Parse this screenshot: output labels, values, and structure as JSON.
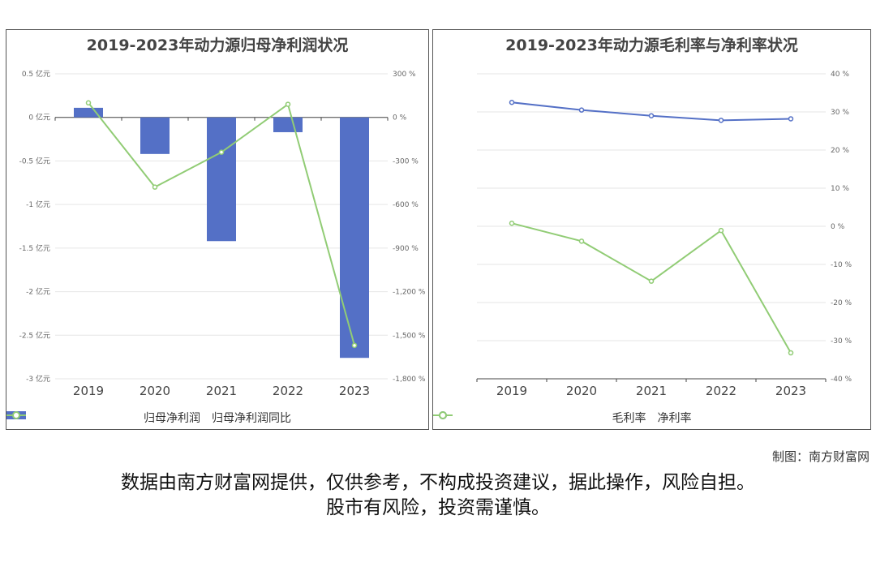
{
  "chart_data": [
    {
      "type": "bar",
      "title": "2019-2023年动力源归母净利润状况",
      "categories": [
        "2019",
        "2020",
        "2021",
        "2022",
        "2023"
      ],
      "y_left": {
        "ticks": [
          "0.5 亿元",
          "0 亿元",
          "-0.5 亿元",
          "-1 亿元",
          "-1.5 亿元",
          "-2 亿元",
          "-2.5 亿元",
          "-3 亿元"
        ],
        "range": [
          -3,
          0.5
        ]
      },
      "y_right": {
        "ticks": [
          "300 %",
          "0 %",
          "-300 %",
          "-600 %",
          "-900 %",
          "-1,200 %",
          "-1,500 %",
          "-1,800 %"
        ],
        "range": [
          -1800,
          300
        ]
      },
      "series": [
        {
          "name": "归母净利润",
          "kind": "bar",
          "axis": "left",
          "color": "#5470c6",
          "values": [
            0.11,
            -0.42,
            -1.42,
            -0.17,
            -2.76
          ]
        },
        {
          "name": "归母净利润同比",
          "kind": "line",
          "axis": "right",
          "color": "#91cc75",
          "values": [
            100,
            -480,
            -240,
            90,
            -1570
          ]
        }
      ],
      "legend": "bottom"
    },
    {
      "type": "line",
      "title": "2019-2023年动力源毛利率与净利率状况",
      "categories": [
        "2019",
        "2020",
        "2021",
        "2022",
        "2023"
      ],
      "y_right": {
        "ticks": [
          "40 %",
          "30 %",
          "20 %",
          "10 %",
          "0 %",
          "-10 %",
          "-20 %",
          "-30 %",
          "-40 %"
        ],
        "range": [
          -40,
          40
        ]
      },
      "series": [
        {
          "name": "毛利率",
          "kind": "line",
          "color": "#5470c6",
          "values": [
            32.5,
            30.5,
            29.0,
            27.8,
            28.2
          ]
        },
        {
          "name": "净利率",
          "kind": "line",
          "color": "#91cc75",
          "values": [
            0.8,
            -3.9,
            -14.4,
            -1.1,
            -33.2
          ]
        }
      ],
      "legend": "bottom"
    }
  ],
  "footer": {
    "credit": "制图：南方财富网",
    "disclaimer_line1": "数据由南方财富网提供，仅供参考，不构成投资建议，据此操作，风险自担。",
    "disclaimer_line2": "股市有风险，投资需谨慎。"
  }
}
